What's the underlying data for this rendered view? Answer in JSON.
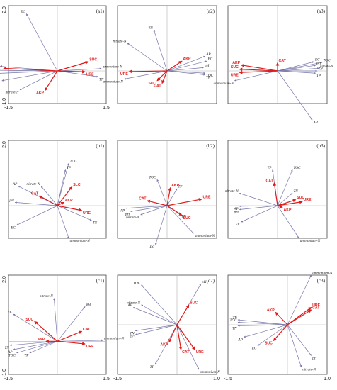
{
  "chart_data": [
    {
      "type": "biplot",
      "panel_label": "(a1)",
      "xlim": [
        -1.5,
        1.5
      ],
      "ylim": [
        -1.0,
        2.0
      ],
      "xticks": [
        "-1.5",
        "1.5"
      ],
      "yticks": [
        "2.0",
        "-1.0"
      ],
      "env": [
        {
          "name": "EC",
          "x": -0.95,
          "y": 1.75
        },
        {
          "name": "ammonium-N",
          "x": 1.35,
          "y": 0.07
        },
        {
          "name": "TN",
          "x": 1.25,
          "y": -0.18
        },
        {
          "name": "AP",
          "x": -1.75,
          "y": 0.14
        },
        {
          "name": "pH",
          "x": -1.9,
          "y": 0.02
        },
        {
          "name": "TP",
          "x": -1.9,
          "y": -0.08
        },
        {
          "name": "TOC",
          "x": -1.7,
          "y": -0.3
        },
        {
          "name": "nitrate-N",
          "x": -1.15,
          "y": -0.58
        }
      ],
      "enzymes": [
        {
          "name": "SUC",
          "x": 0.95,
          "y": 0.28
        },
        {
          "name": "URE",
          "x": 0.85,
          "y": -0.03
        },
        {
          "name": "CAT",
          "x": -1.65,
          "y": 0.08
        },
        {
          "name": "AKP",
          "x": -0.38,
          "y": -0.6
        }
      ]
    },
    {
      "type": "biplot",
      "panel_label": "(a2)",
      "xlim": [
        -1.5,
        1.5
      ],
      "ylim": [
        -1.0,
        2.0
      ],
      "xticks": [],
      "yticks": [],
      "env": [
        {
          "name": "TN",
          "x": -0.4,
          "y": 1.25
        },
        {
          "name": "nitrate-N",
          "x": -1.2,
          "y": 0.85
        },
        {
          "name": "AP",
          "x": 1.15,
          "y": 0.45
        },
        {
          "name": "EC",
          "x": 1.2,
          "y": 0.3
        },
        {
          "name": "pH",
          "x": 1.1,
          "y": 0.1
        },
        {
          "name": "TOC",
          "x": 1.15,
          "y": -0.07
        },
        {
          "name": "TP",
          "x": 1.15,
          "y": -0.12
        },
        {
          "name": "ammonium-N",
          "x": -1.3,
          "y": -0.25
        }
      ],
      "enzymes": [
        {
          "name": "AKP",
          "x": 0.45,
          "y": 0.3
        },
        {
          "name": "URE",
          "x": -1.15,
          "y": -0.02
        },
        {
          "name": "SUC",
          "x": -0.3,
          "y": -0.3
        },
        {
          "name": "CAT",
          "x": -0.15,
          "y": -0.38
        }
      ]
    },
    {
      "type": "biplot",
      "panel_label": "(a3)",
      "xlim": [
        -1.5,
        1.5
      ],
      "ylim": [
        -1.0,
        2.0
      ],
      "xticks": [],
      "yticks": [],
      "env": [
        {
          "name": "EC",
          "x": 1.1,
          "y": 0.28
        },
        {
          "name": "TOC",
          "x": 1.35,
          "y": 0.26
        },
        {
          "name": "pH",
          "x": 1.15,
          "y": 0.17
        },
        {
          "name": "nitrate-N",
          "x": 1.25,
          "y": 0.08
        },
        {
          "name": "TN",
          "x": 1.2,
          "y": 0.0
        },
        {
          "name": "TP",
          "x": 1.15,
          "y": -0.07
        },
        {
          "name": "ammonium-N",
          "x": -1.3,
          "y": -0.3
        },
        {
          "name": "AP",
          "x": 1.05,
          "y": -1.5
        }
      ],
      "enzymes": [
        {
          "name": "CAT",
          "x": 0.0,
          "y": 0.25
        },
        {
          "name": "AKP",
          "x": -1.1,
          "y": 0.18
        },
        {
          "name": "SUC",
          "x": -1.15,
          "y": 0.05
        },
        {
          "name": "URE",
          "x": -1.15,
          "y": -0.05
        }
      ]
    },
    {
      "type": "biplot",
      "panel_label": "(b1)",
      "xlim": [
        -1.5,
        1.5
      ],
      "ylim": [
        -1.0,
        2.0
      ],
      "xticks": [],
      "yticks": [
        "2.0"
      ],
      "env": [
        {
          "name": "TOC",
          "x": 0.35,
          "y": 1.3
        },
        {
          "name": "TP",
          "x": 0.25,
          "y": 1.1
        },
        {
          "name": "AP",
          "x": -1.2,
          "y": 0.6
        },
        {
          "name": "nitrate-N",
          "x": -0.5,
          "y": 0.6
        },
        {
          "name": "pH",
          "x": -1.3,
          "y": 0.1
        },
        {
          "name": "EC",
          "x": -1.25,
          "y": -0.6
        },
        {
          "name": "TN",
          "x": 1.05,
          "y": -0.45
        },
        {
          "name": "ammonium-N",
          "x": 0.35,
          "y": -1.0
        }
      ],
      "enzymes": [
        {
          "name": "SLC",
          "x": 0.45,
          "y": 0.58
        },
        {
          "name": "CAT",
          "x": -0.55,
          "y": 0.3
        },
        {
          "name": "AKP",
          "x": 0.2,
          "y": 0.1
        },
        {
          "name": "URE",
          "x": 0.75,
          "y": -0.15
        }
      ]
    },
    {
      "type": "biplot",
      "panel_label": "(b2)",
      "xlim": [
        -1.5,
        1.5
      ],
      "ylim": [
        -1.0,
        2.0
      ],
      "xticks": [],
      "yticks": [],
      "env": [
        {
          "name": "TOC",
          "x": -0.3,
          "y": 0.8
        },
        {
          "name": "TP",
          "x": 0.3,
          "y": 0.52
        },
        {
          "name": "AP",
          "x": -1.25,
          "y": -0.08
        },
        {
          "name": "pH",
          "x": -1.1,
          "y": -0.18
        },
        {
          "name": "nitrate-N",
          "x": -0.8,
          "y": -0.28
        },
        {
          "name": "TN",
          "x": 0.4,
          "y": -0.25
        },
        {
          "name": "EC",
          "x": -0.35,
          "y": -1.2
        },
        {
          "name": "ammonium-N",
          "x": 0.8,
          "y": -0.85
        }
      ],
      "enzymes": [
        {
          "name": "AKP",
          "x": 0.1,
          "y": 0.55
        },
        {
          "name": "URE",
          "x": 1.05,
          "y": 0.2
        },
        {
          "name": "CAT",
          "x": -0.6,
          "y": 0.15
        },
        {
          "name": "SUC",
          "x": 0.45,
          "y": -0.3
        }
      ]
    },
    {
      "type": "biplot",
      "panel_label": "(b3)",
      "xlim": [
        -1.5,
        1.5
      ],
      "ylim": [
        -1.0,
        2.0
      ],
      "xticks": [],
      "yticks": [],
      "env": [
        {
          "name": "TP",
          "x": -0.15,
          "y": 1.1
        },
        {
          "name": "TOC",
          "x": 0.45,
          "y": 1.1
        },
        {
          "name": "nitrate-N",
          "x": -1.15,
          "y": 0.38
        },
        {
          "name": "TN",
          "x": 0.45,
          "y": 0.38
        },
        {
          "name": "AP",
          "x": -1.15,
          "y": -0.02
        },
        {
          "name": "pH",
          "x": -1.15,
          "y": -0.12
        },
        {
          "name": "EC",
          "x": -1.1,
          "y": -0.5
        },
        {
          "name": "ammonium-N",
          "x": 0.65,
          "y": -1.0
        }
      ],
      "enzymes": [
        {
          "name": "CAT",
          "x": -0.1,
          "y": 0.7
        },
        {
          "name": "SUC",
          "x": 0.55,
          "y": 0.18
        },
        {
          "name": "URE",
          "x": 0.75,
          "y": 0.12
        },
        {
          "name": "AKP",
          "x": 0.15,
          "y": -0.05
        }
      ]
    },
    {
      "type": "biplot",
      "panel_label": "(c1)",
      "xlim": [
        -1.5,
        1.5
      ],
      "ylim": [
        -1.0,
        2.0
      ],
      "xticks": [
        "-1.5",
        "1.5"
      ],
      "yticks": [
        "2.0",
        "-1.0"
      ],
      "env": [
        {
          "name": "nitrate-N",
          "x": -0.1,
          "y": 1.3
        },
        {
          "name": "pH",
          "x": 0.85,
          "y": 1.05
        },
        {
          "name": "EC",
          "x": -1.35,
          "y": 0.82
        },
        {
          "name": "TN",
          "x": -1.45,
          "y": -0.12
        },
        {
          "name": "AP",
          "x": -1.35,
          "y": -0.25
        },
        {
          "name": "TOC",
          "x": -1.25,
          "y": -0.35
        },
        {
          "name": "TP",
          "x": -0.85,
          "y": -0.35
        },
        {
          "name": "ammonium-N",
          "x": 1.4,
          "y": 0.03
        }
      ],
      "enzymes": [
        {
          "name": "SUC",
          "x": -0.7,
          "y": 0.6
        },
        {
          "name": "CAT",
          "x": 0.75,
          "y": 0.3
        },
        {
          "name": "AKP",
          "x": -0.35,
          "y": 0.0
        },
        {
          "name": "URE",
          "x": 0.85,
          "y": -0.08
        }
      ]
    },
    {
      "type": "biplot",
      "panel_label": "(c2)",
      "xlim": [
        -1.5,
        1.0
      ],
      "ylim": [
        -1.0,
        1.0
      ],
      "xticks": [
        "-1.5",
        "1.0"
      ],
      "yticks": [],
      "env": [
        {
          "name": "TOC",
          "x": -0.9,
          "y": 0.8
        },
        {
          "name": "pH",
          "x": 0.6,
          "y": 0.82
        },
        {
          "name": "AP",
          "x": -1.1,
          "y": 0.35
        },
        {
          "name": "nitrate-N",
          "x": -0.9,
          "y": 0.4
        },
        {
          "name": "TN",
          "x": -1.05,
          "y": -0.12
        },
        {
          "name": "EC",
          "x": -1.05,
          "y": -0.2
        },
        {
          "name": "TP",
          "x": -0.55,
          "y": -0.8
        },
        {
          "name": "ammonium-N",
          "x": 0.55,
          "y": -0.9
        }
      ],
      "enzymes": [
        {
          "name": "SUC",
          "x": 0.3,
          "y": 0.4
        },
        {
          "name": "AKP",
          "x": -0.2,
          "y": -0.35
        },
        {
          "name": "CAT",
          "x": 0.1,
          "y": -0.5
        },
        {
          "name": "URE",
          "x": 0.45,
          "y": -0.5
        }
      ]
    },
    {
      "type": "biplot",
      "panel_label": "(c3)",
      "xlim": [
        -1.5,
        1.0
      ],
      "ylim": [
        -1.0,
        1.0
      ],
      "xticks": [
        "-1.5",
        "1.0"
      ],
      "yticks": [],
      "env": [
        {
          "name": "ammonium-N",
          "x": 0.6,
          "y": 1.0
        },
        {
          "name": "TP",
          "x": -1.25,
          "y": 0.1
        },
        {
          "name": "TOC",
          "x": -1.25,
          "y": 0.05
        },
        {
          "name": "TN",
          "x": -1.25,
          "y": -0.02
        },
        {
          "name": "AP",
          "x": -1.1,
          "y": -0.25
        },
        {
          "name": "EC",
          "x": -0.75,
          "y": -0.42
        },
        {
          "name": "pH",
          "x": 0.6,
          "y": -0.62
        },
        {
          "name": "nitrate-N",
          "x": 0.35,
          "y": -0.85
        }
      ],
      "enzymes": [
        {
          "name": "URE",
          "x": 0.6,
          "y": 0.35
        },
        {
          "name": "CAT",
          "x": 0.6,
          "y": 0.3
        },
        {
          "name": "AKP",
          "x": -0.3,
          "y": 0.25
        },
        {
          "name": "SUC",
          "x": -0.35,
          "y": -0.32
        }
      ]
    }
  ]
}
